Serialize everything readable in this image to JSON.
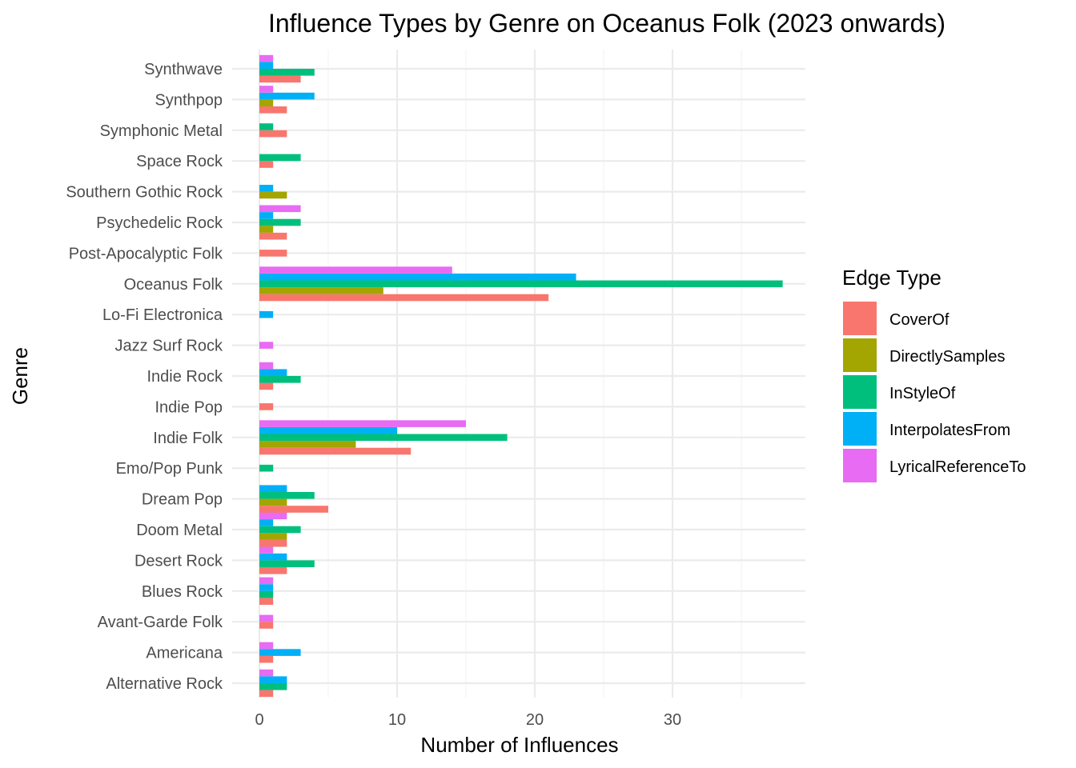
{
  "chart_data": {
    "type": "bar",
    "orientation": "horizontal",
    "title": "Influence Types by Genre on Oceanus Folk (2023 onwards)",
    "xlabel": "Number of Influences",
    "ylabel": "Genre",
    "xlim": [
      0,
      40
    ],
    "xticks": [
      0,
      10,
      20,
      30
    ],
    "grid": true,
    "legend": {
      "title": "Edge Type",
      "position": "right"
    },
    "categories": [
      "Alternative Rock",
      "Americana",
      "Avant-Garde Folk",
      "Blues Rock",
      "Desert Rock",
      "Doom Metal",
      "Dream Pop",
      "Emo/Pop Punk",
      "Indie Folk",
      "Indie Pop",
      "Indie Rock",
      "Jazz Surf Rock",
      "Lo-Fi Electronica",
      "Oceanus Folk",
      "Post-Apocalyptic Folk",
      "Psychedelic Rock",
      "Southern Gothic Rock",
      "Space Rock",
      "Symphonic Metal",
      "Synthpop",
      "Synthwave"
    ],
    "series": [
      {
        "name": "CoverOf",
        "color": "#F8766D",
        "values": [
          1,
          1,
          1,
          1,
          2,
          2,
          5,
          0,
          11,
          1,
          1,
          0,
          0,
          21,
          2,
          2,
          0,
          1,
          2,
          2,
          3
        ]
      },
      {
        "name": "DirectlySamples",
        "color": "#A3A500",
        "values": [
          0,
          0,
          0,
          0,
          0,
          2,
          2,
          0,
          7,
          0,
          0,
          0,
          0,
          9,
          0,
          1,
          2,
          0,
          0,
          1,
          0
        ]
      },
      {
        "name": "InStyleOf",
        "color": "#00BF7D",
        "values": [
          2,
          0,
          0,
          1,
          4,
          3,
          4,
          1,
          18,
          0,
          3,
          0,
          0,
          38,
          0,
          3,
          0,
          3,
          1,
          0,
          4
        ]
      },
      {
        "name": "InterpolatesFrom",
        "color": "#00B0F6",
        "values": [
          2,
          3,
          0,
          1,
          2,
          1,
          2,
          0,
          10,
          0,
          2,
          0,
          1,
          23,
          0,
          1,
          1,
          0,
          0,
          4,
          1
        ]
      },
      {
        "name": "LyricalReferenceTo",
        "color": "#E76BF3",
        "values": [
          1,
          1,
          1,
          1,
          1,
          2,
          0,
          0,
          15,
          0,
          1,
          1,
          0,
          14,
          0,
          3,
          0,
          0,
          0,
          1,
          1
        ]
      }
    ]
  }
}
